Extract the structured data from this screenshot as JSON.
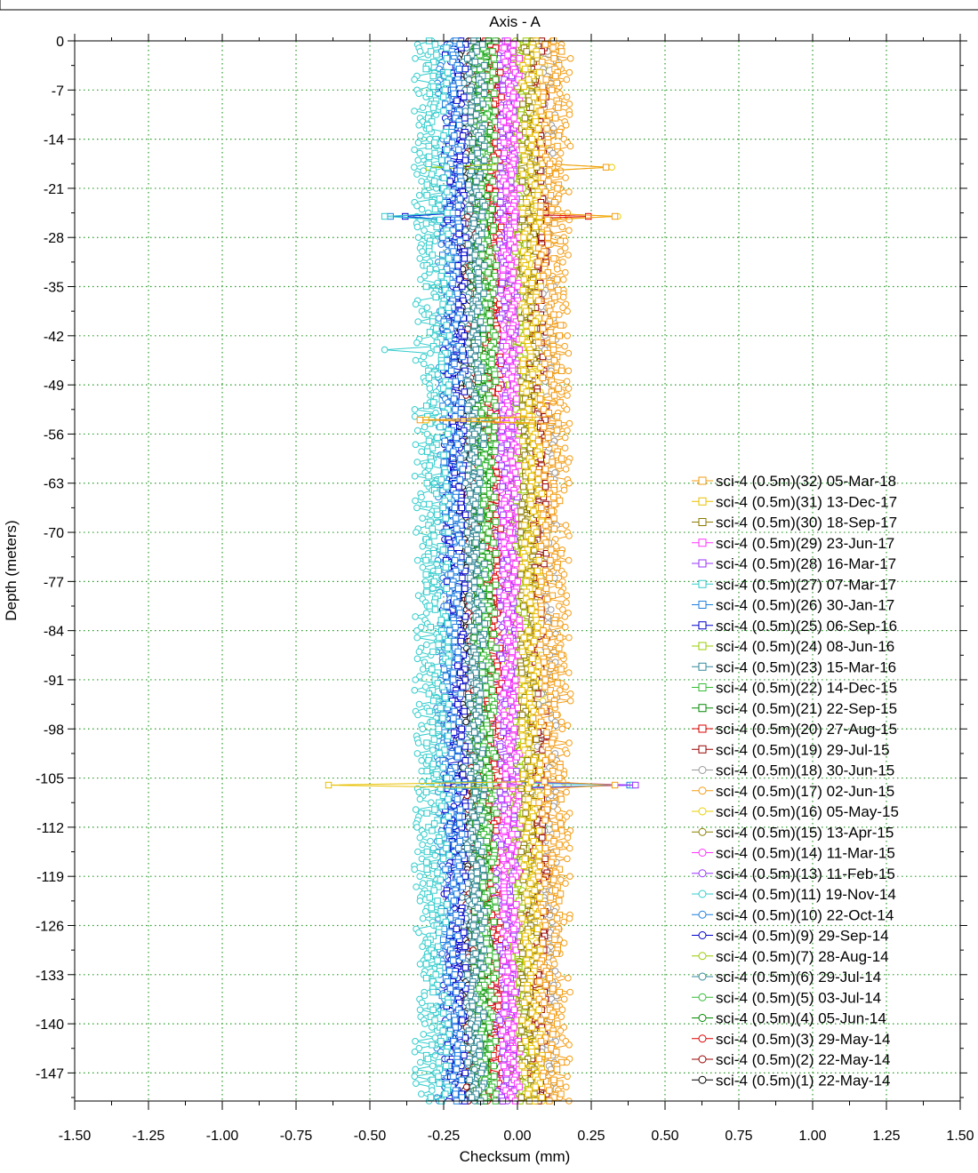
{
  "chart_data": {
    "type": "line",
    "title": "Axis - A",
    "xlabel": "Checksum (mm)",
    "ylabel": "Depth (meters)",
    "xlim": [
      -1.5,
      1.5
    ],
    "ylim": [
      -151,
      0
    ],
    "x_ticks": [
      "-1.50",
      "-1.25",
      "-1.00",
      "-0.75",
      "-0.50",
      "-0.25",
      "0.00",
      "0.25",
      "0.50",
      "0.75",
      "1.00",
      "1.25",
      "1.50"
    ],
    "y_ticks": [
      "0",
      "-7",
      "-14",
      "-21",
      "-28",
      "-35",
      "-42",
      "-49",
      "-56",
      "-63",
      "-70",
      "-77",
      "-84",
      "-91",
      "-98",
      "-105",
      "-112",
      "-119",
      "-126",
      "-133",
      "-140",
      "-147"
    ],
    "grid": true,
    "legend_position": "right",
    "depth_step": 0.5,
    "series": [
      {
        "name": "sci-4 (0.5m)(32) 05-Mar-18",
        "color": "#f39c12",
        "marker": "square",
        "center": 0.11,
        "spread": 0.04
      },
      {
        "name": "sci-4 (0.5m)(31) 13-Dec-17",
        "color": "#e8c000",
        "marker": "square",
        "center": 0.05,
        "spread": 0.035
      },
      {
        "name": "sci-4 (0.5m)(30) 18-Sep-17",
        "color": "#8b7a00",
        "marker": "square",
        "center": 0.04,
        "spread": 0.03
      },
      {
        "name": "sci-4 (0.5m)(29) 23-Jun-17",
        "color": "#ff33ff",
        "marker": "square",
        "center": -0.02,
        "spread": 0.03
      },
      {
        "name": "sci-4 (0.5m)(28) 16-Mar-17",
        "color": "#9933ff",
        "marker": "square",
        "center": -0.03,
        "spread": 0.03
      },
      {
        "name": "sci-4 (0.5m)(27) 07-Mar-17",
        "color": "#33cccc",
        "marker": "square",
        "center": -0.27,
        "spread": 0.04
      },
      {
        "name": "sci-4 (0.5m)(26) 30-Jan-17",
        "color": "#1f7fdf",
        "marker": "square",
        "center": -0.22,
        "spread": 0.035
      },
      {
        "name": "sci-4 (0.5m)(25) 06-Sep-16",
        "color": "#0000cc",
        "marker": "square",
        "center": -0.21,
        "spread": 0.035
      },
      {
        "name": "sci-4 (0.5m)(24) 08-Jun-16",
        "color": "#99cc00",
        "marker": "square",
        "center": 0.0,
        "spread": 0.03
      },
      {
        "name": "sci-4 (0.5m)(23) 15-Mar-16",
        "color": "#338899",
        "marker": "square",
        "center": -0.14,
        "spread": 0.03
      },
      {
        "name": "sci-4 (0.5m)(22) 14-Dec-15",
        "color": "#33bb33",
        "marker": "square",
        "center": -0.1,
        "spread": 0.03
      },
      {
        "name": "sci-4 (0.5m)(21) 22-Sep-15",
        "color": "#008800",
        "marker": "square",
        "center": -0.12,
        "spread": 0.03
      },
      {
        "name": "sci-4 (0.5m)(20) 27-Aug-15",
        "color": "#dd0000",
        "marker": "square",
        "center": -0.08,
        "spread": 0.03
      },
      {
        "name": "sci-4 (0.5m)(19) 29-Jul-15",
        "color": "#990000",
        "marker": "square",
        "center": 0.07,
        "spread": 0.03
      },
      {
        "name": "sci-4 (0.5m)(18) 30-Jun-15",
        "color": "#999999",
        "marker": "circle",
        "center": 0.1,
        "spread": 0.035
      },
      {
        "name": "sci-4 (0.5m)(17) 02-Jun-15",
        "color": "#f39c12",
        "marker": "circle",
        "center": 0.14,
        "spread": 0.04
      },
      {
        "name": "sci-4 (0.5m)(16) 05-May-15",
        "color": "#e8d000",
        "marker": "circle",
        "center": 0.06,
        "spread": 0.035
      },
      {
        "name": "sci-4 (0.5m)(15) 13-Apr-15",
        "color": "#8b8000",
        "marker": "circle",
        "center": 0.02,
        "spread": 0.03
      },
      {
        "name": "sci-4 (0.5m)(14) 11-Mar-15",
        "color": "#ff33ff",
        "marker": "circle",
        "center": -0.03,
        "spread": 0.03
      },
      {
        "name": "sci-4 (0.5m)(13) 11-Feb-15",
        "color": "#9933ff",
        "marker": "circle",
        "center": -0.05,
        "spread": 0.03
      },
      {
        "name": "sci-4 (0.5m)(11) 19-Nov-14",
        "color": "#33cccc",
        "marker": "circle",
        "center": -0.31,
        "spread": 0.04
      },
      {
        "name": "sci-4 (0.5m)(10) 22-Oct-14",
        "color": "#1f7fdf",
        "marker": "circle",
        "center": -0.24,
        "spread": 0.035
      },
      {
        "name": "sci-4 (0.5m)(9) 29-Sep-14",
        "color": "#0000cc",
        "marker": "circle",
        "center": -0.22,
        "spread": 0.035
      },
      {
        "name": "sci-4 (0.5m)(7) 28-Aug-14",
        "color": "#99cc00",
        "marker": "circle",
        "center": -0.01,
        "spread": 0.03
      },
      {
        "name": "sci-4 (0.5m)(6) 29-Jul-14",
        "color": "#338899",
        "marker": "circle",
        "center": -0.16,
        "spread": 0.03
      },
      {
        "name": "sci-4 (0.5m)(5) 03-Jul-14",
        "color": "#33bb33",
        "marker": "circle",
        "center": -0.11,
        "spread": 0.03
      },
      {
        "name": "sci-4 (0.5m)(4) 05-Jun-14",
        "color": "#008800",
        "marker": "circle",
        "center": -0.13,
        "spread": 0.03
      },
      {
        "name": "sci-4 (0.5m)(3) 29-May-14",
        "color": "#dd0000",
        "marker": "circle",
        "center": -0.09,
        "spread": 0.03
      },
      {
        "name": "sci-4 (0.5m)(2) 22-May-14",
        "color": "#990000",
        "marker": "circle",
        "center": -0.15,
        "spread": 0.025
      },
      {
        "name": "sci-4 (0.5m)(1) 22-May-14",
        "color": "#000000",
        "marker": "circle",
        "center": -0.18,
        "spread": 0.02
      }
    ],
    "outliers": [
      {
        "depth": -106,
        "points": [
          {
            "series": 0,
            "x": -0.66
          },
          {
            "series": 0,
            "x": 0.33
          },
          {
            "series": 1,
            "x": -0.64
          },
          {
            "series": 4,
            "x": -0.6
          },
          {
            "series": 4,
            "x": 0.4
          },
          {
            "series": 5,
            "x": -0.58
          },
          {
            "series": 5,
            "x": 0.39
          },
          {
            "series": 6,
            "x": -0.57
          },
          {
            "series": 6,
            "x": 0.38
          }
        ]
      },
      {
        "depth": -25,
        "points": [
          {
            "series": 5,
            "x": -0.45
          },
          {
            "series": 6,
            "x": -0.43
          },
          {
            "series": 7,
            "x": -0.38
          },
          {
            "series": 0,
            "x": 0.33
          },
          {
            "series": 16,
            "x": 0.34
          },
          {
            "series": 12,
            "x": 0.24
          }
        ]
      },
      {
        "depth": -18,
        "points": [
          {
            "series": 20,
            "x": -0.35
          },
          {
            "series": 8,
            "x": -0.3
          },
          {
            "series": 0,
            "x": 0.3
          },
          {
            "series": 16,
            "x": 0.32
          }
        ]
      },
      {
        "depth": -54,
        "points": [
          {
            "series": 0,
            "x": -0.33
          },
          {
            "series": 1,
            "x": -0.31
          },
          {
            "series": 5,
            "x": -0.29
          }
        ]
      },
      {
        "depth": -44,
        "points": [
          {
            "series": 20,
            "x": -0.45
          }
        ]
      }
    ]
  }
}
